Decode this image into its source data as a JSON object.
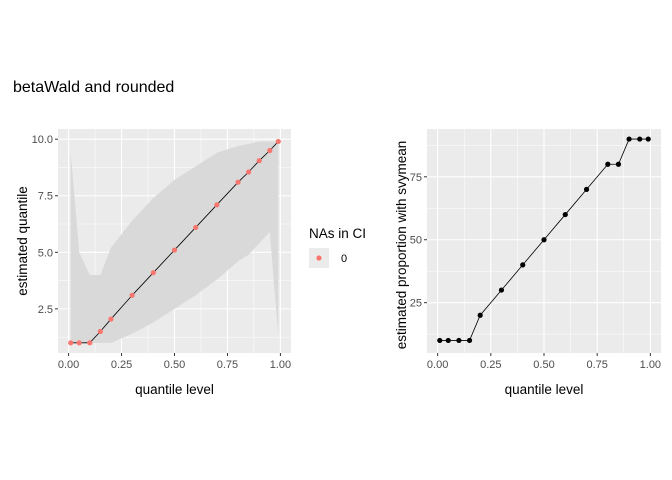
{
  "title": "betaWald and rounded",
  "colors": {
    "panel_bg": "#ebebeb",
    "grid": "#ffffff",
    "ribbon": "#d9d9d9",
    "point_left": "#f8766d",
    "line": "#000000",
    "point_right": "#000000"
  },
  "chart_data": [
    {
      "type": "line",
      "xlabel": "quantile level",
      "ylabel": "estimated quantile",
      "xlim": [
        -0.05,
        1.05
      ],
      "ylim": [
        0.55,
        10.45
      ],
      "x_ticks": [
        0.0,
        0.25,
        0.5,
        0.75,
        1.0
      ],
      "x_tick_labels": [
        "0.00",
        "0.25",
        "0.50",
        "0.75",
        "1.00"
      ],
      "y_ticks": [
        2.5,
        5.0,
        7.5,
        10.0
      ],
      "y_tick_labels": [
        "2.5",
        "5.0",
        "7.5",
        "10.0"
      ],
      "grid": true,
      "legend": {
        "title": "NAs in CI",
        "placement": "right",
        "entries": [
          "0"
        ]
      },
      "series": [
        {
          "name": "0",
          "x": [
            0.01,
            0.05,
            0.1,
            0.15,
            0.2,
            0.3,
            0.4,
            0.5,
            0.6,
            0.7,
            0.8,
            0.85,
            0.9,
            0.95,
            0.99
          ],
          "y": [
            1.0,
            1.0,
            1.0,
            1.5,
            2.05,
            3.1,
            4.1,
            5.1,
            6.1,
            7.1,
            8.1,
            8.55,
            9.05,
            9.5,
            9.9
          ]
        }
      ],
      "ci_band": {
        "x": [
          0.01,
          0.05,
          0.1,
          0.15,
          0.2,
          0.3,
          0.4,
          0.5,
          0.6,
          0.7,
          0.8,
          0.85,
          0.9,
          0.95,
          0.99
        ],
        "lower": [
          1.0,
          1.0,
          1.0,
          1.0,
          1.0,
          1.4,
          1.9,
          2.5,
          3.1,
          3.8,
          4.6,
          4.9,
          5.4,
          5.9,
          1.3
        ],
        "upper": [
          9.4,
          5.0,
          4.0,
          4.0,
          5.2,
          6.4,
          7.4,
          8.2,
          8.8,
          9.4,
          9.7,
          9.8,
          9.9,
          9.9,
          9.9
        ]
      }
    },
    {
      "type": "line",
      "xlabel": "quantile level",
      "ylabel": "estimated proportion with svymean",
      "xlim": [
        -0.05,
        1.05
      ],
      "ylim": [
        5.0,
        94.0
      ],
      "x_ticks": [
        0.0,
        0.25,
        0.5,
        0.75,
        1.0
      ],
      "x_tick_labels": [
        "0.00",
        "0.25",
        "0.50",
        "0.75",
        "1.00"
      ],
      "y_ticks": [
        25,
        50,
        75
      ],
      "y_tick_labels": [
        "25",
        "50",
        "75"
      ],
      "grid": true,
      "series": [
        {
          "x": [
            0.01,
            0.05,
            0.1,
            0.15,
            0.2,
            0.3,
            0.4,
            0.5,
            0.6,
            0.7,
            0.8,
            0.85,
            0.9,
            0.95,
            0.99
          ],
          "y": [
            10,
            10,
            10,
            10,
            20,
            30,
            40,
            50,
            60,
            70,
            80,
            80,
            90,
            90,
            90
          ]
        }
      ]
    }
  ]
}
